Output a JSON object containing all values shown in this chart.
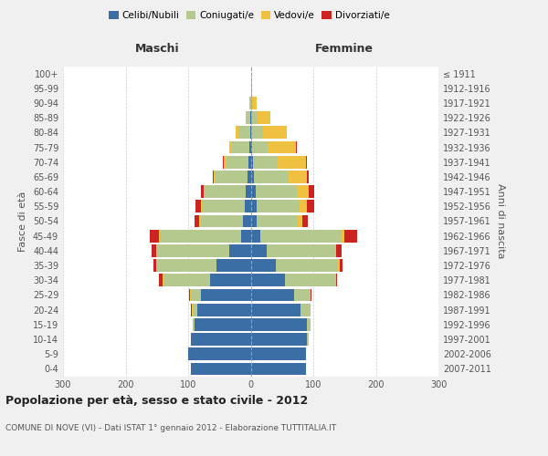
{
  "age_groups": [
    "0-4",
    "5-9",
    "10-14",
    "15-19",
    "20-24",
    "25-29",
    "30-34",
    "35-39",
    "40-44",
    "45-49",
    "50-54",
    "55-59",
    "60-64",
    "65-69",
    "70-74",
    "75-79",
    "80-84",
    "85-89",
    "90-94",
    "95-99",
    "100+"
  ],
  "birth_years": [
    "2007-2011",
    "2002-2006",
    "1997-2001",
    "1992-1996",
    "1987-1991",
    "1982-1986",
    "1977-1981",
    "1972-1976",
    "1967-1971",
    "1962-1966",
    "1957-1961",
    "1952-1956",
    "1947-1951",
    "1942-1946",
    "1937-1941",
    "1932-1936",
    "1927-1931",
    "1922-1926",
    "1917-1921",
    "1912-1916",
    "≤ 1911"
  ],
  "maschi": {
    "celibi": [
      95,
      100,
      95,
      90,
      85,
      80,
      65,
      55,
      35,
      15,
      12,
      10,
      8,
      5,
      3,
      2,
      1,
      1,
      0,
      0,
      0
    ],
    "coniugati": [
      0,
      0,
      0,
      2,
      8,
      15,
      75,
      95,
      115,
      130,
      68,
      68,
      65,
      52,
      35,
      28,
      18,
      5,
      2,
      0,
      0
    ],
    "vedovi": [
      0,
      0,
      0,
      0,
      1,
      2,
      1,
      1,
      1,
      2,
      2,
      2,
      2,
      2,
      5,
      5,
      5,
      2,
      0,
      0,
      0
    ],
    "divorziati": [
      0,
      0,
      0,
      0,
      1,
      1,
      5,
      5,
      8,
      15,
      8,
      8,
      5,
      2,
      2,
      0,
      0,
      0,
      0,
      0,
      0
    ]
  },
  "femmine": {
    "nubili": [
      88,
      88,
      90,
      90,
      80,
      70,
      55,
      40,
      25,
      15,
      10,
      10,
      8,
      5,
      3,
      2,
      1,
      1,
      0,
      0,
      0
    ],
    "coniugate": [
      0,
      0,
      2,
      5,
      15,
      25,
      80,
      100,
      110,
      130,
      65,
      68,
      65,
      55,
      40,
      25,
      18,
      10,
      2,
      0,
      0
    ],
    "vedove": [
      0,
      0,
      0,
      0,
      0,
      1,
      1,
      2,
      2,
      5,
      8,
      12,
      20,
      30,
      45,
      45,
      38,
      20,
      8,
      2,
      0
    ],
    "divorziate": [
      0,
      0,
      0,
      0,
      0,
      1,
      2,
      5,
      8,
      20,
      8,
      12,
      8,
      2,
      2,
      2,
      0,
      0,
      0,
      0,
      0
    ]
  },
  "colors": {
    "celibi": "#3a6ea5",
    "coniugati": "#b5c98e",
    "vedovi": "#f0c040",
    "divorziati": "#cc2222"
  },
  "legend_labels": [
    "Celibi/Nubili",
    "Coniugati/e",
    "Vedovi/e",
    "Divorziati/e"
  ],
  "title": "Popolazione per età, sesso e stato civile - 2012",
  "subtitle": "COMUNE DI NOVE (VI) - Dati ISTAT 1° gennaio 2012 - Elaborazione TUTTITALIA.IT",
  "xlabel_left": "Maschi",
  "xlabel_right": "Femmine",
  "ylabel_left": "Fasce di età",
  "ylabel_right": "Anni di nascita",
  "xlim": 300,
  "bg_color": "#f0f0f0",
  "plot_bg": "#ffffff"
}
